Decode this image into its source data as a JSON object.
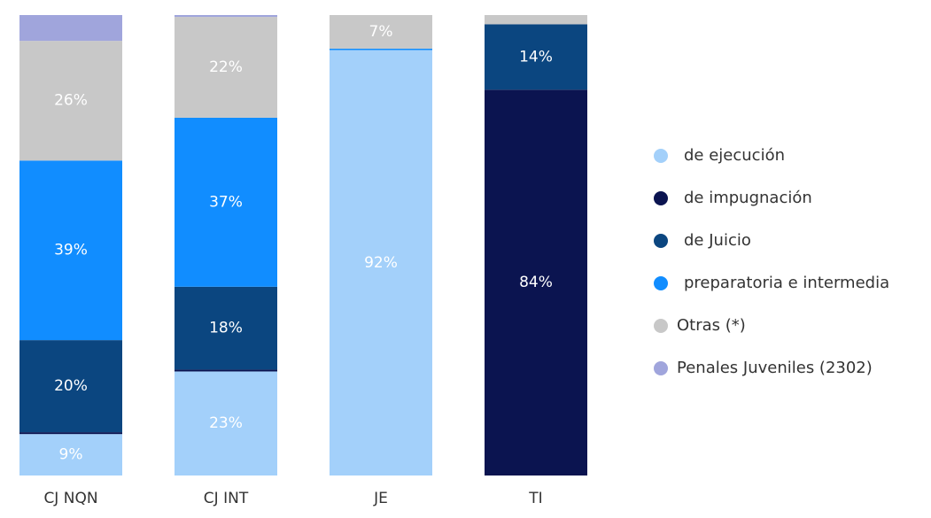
{
  "chart_data": {
    "type": "stacked_bar_100",
    "categories": [
      "CJ NQN",
      "CJ INT",
      "JE",
      "TI"
    ],
    "ylim": [
      0,
      100
    ],
    "series": [
      {
        "name": "de ejecución",
        "color": "#a3d0fa",
        "values": [
          9,
          22.6,
          92.4,
          null
        ],
        "value_labels": [
          "9%",
          "23%",
          "92%",
          null
        ]
      },
      {
        "name": "de impugnación",
        "color": "#0b1450",
        "values": [
          0.4,
          0.4,
          null,
          83.8
        ],
        "value_labels": [
          null,
          null,
          null,
          "84%"
        ]
      },
      {
        "name": "de Juicio",
        "color": "#0b4680",
        "values": [
          20,
          18,
          null,
          14.2
        ],
        "value_labels": [
          "20%",
          "18%",
          null,
          "14%"
        ]
      },
      {
        "name": "preparatoria e intermedia",
        "color": "#118dff",
        "values": [
          39,
          36.7,
          0.3,
          null
        ],
        "value_labels": [
          "39%",
          "37%",
          null,
          null
        ]
      },
      {
        "name": "Otras (*)",
        "color": "#c8c8c8",
        "values": [
          26,
          21.9,
          7.3,
          2
        ],
        "value_labels": [
          "26%",
          "22%",
          "7%",
          null
        ]
      },
      {
        "name": "Penales Juveniles (2302)",
        "color": "#a0a5dc",
        "values": [
          5.6,
          0.4,
          null,
          null
        ],
        "value_labels": [
          null,
          null,
          null,
          null
        ]
      }
    ]
  }
}
